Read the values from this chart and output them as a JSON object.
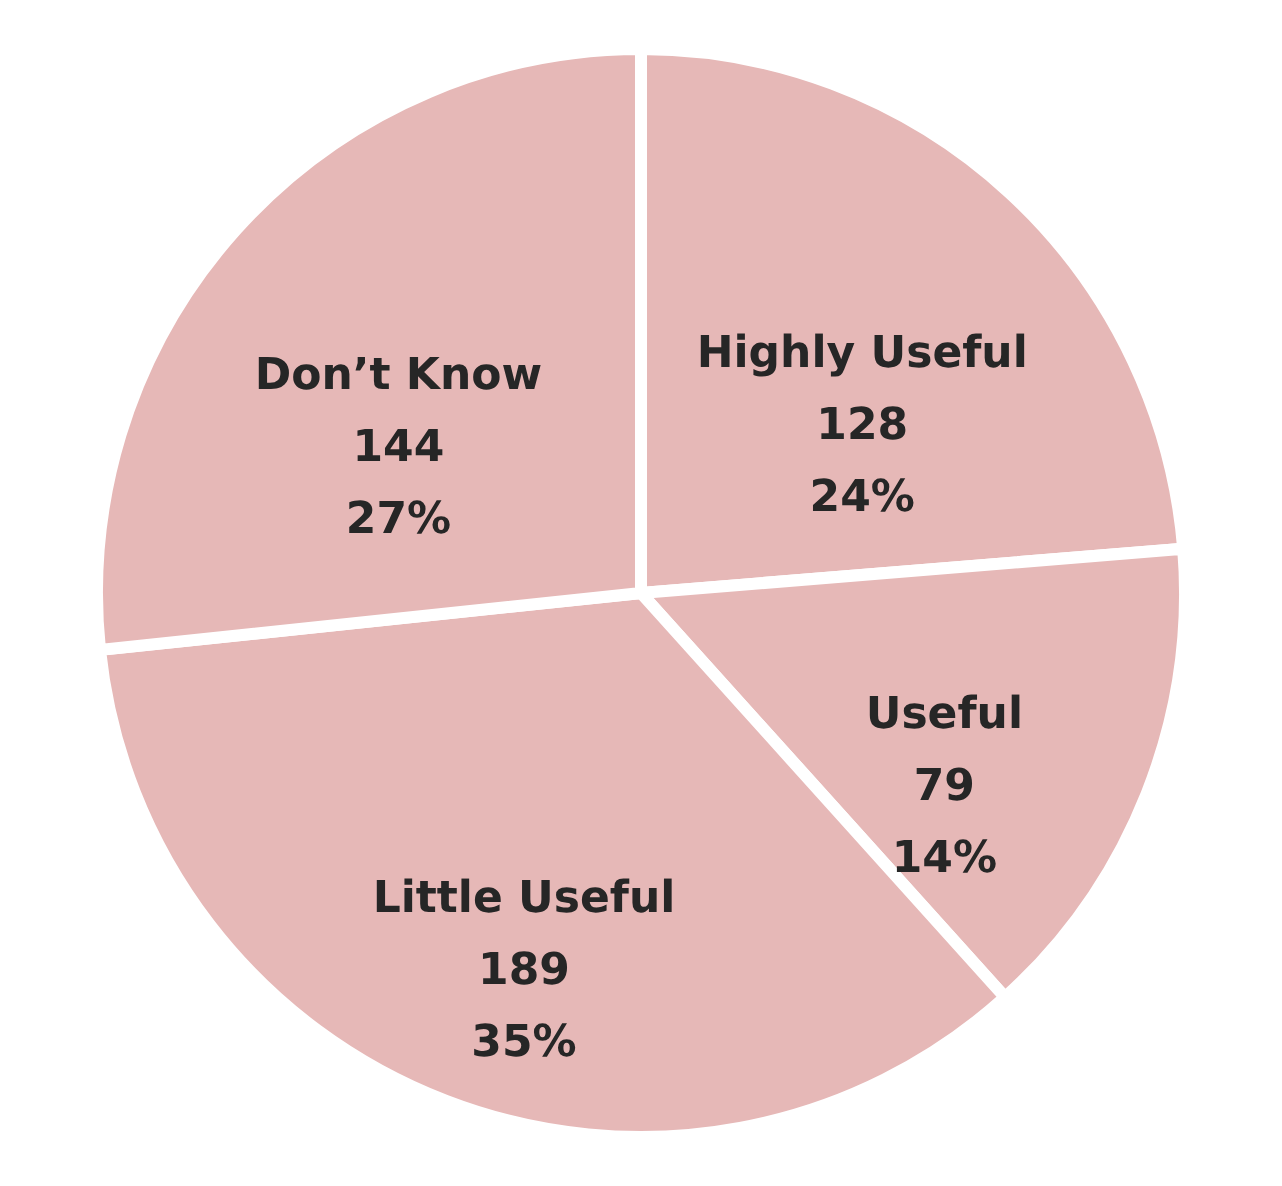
{
  "chart_data": {
    "type": "pie",
    "categories": [
      "Highly Useful",
      "Useful",
      "Little Useful",
      "Don’t Know"
    ],
    "values": [
      128,
      79,
      189,
      144
    ],
    "value_labels": [
      "128\n24%",
      "79\n14%",
      "189\n35%",
      "144\n27%"
    ],
    "colors": [
      "#e6b8b7",
      "#e6b8b7",
      "#e6b8b7",
      "#e6b8b7"
    ],
    "legend": false
  }
}
